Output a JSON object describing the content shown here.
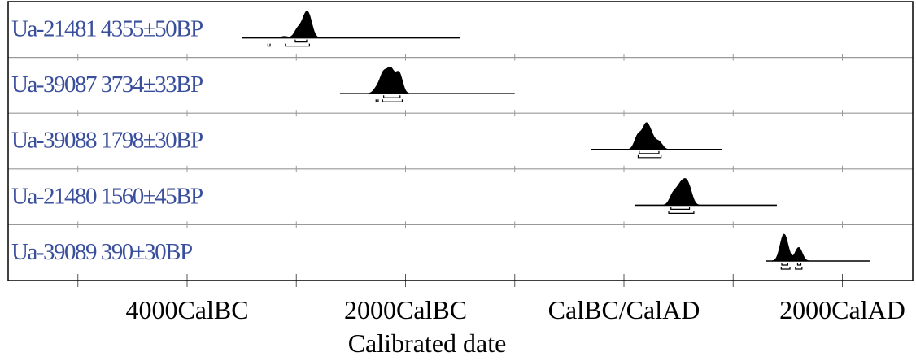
{
  "chart_data": {
    "type": "range",
    "x_axis": {
      "label": "Calibrated date",
      "min": -5000,
      "max": 3000,
      "major_ticks": [
        -4000,
        -2000,
        0,
        2000
      ],
      "minor_step": 1000,
      "tick_labels": [
        "4000CalBC",
        "2000CalBC",
        "CalBC/CalAD",
        "2000CalAD"
      ]
    },
    "grid": true,
    "colors": {
      "label": "#3a4f9c",
      "distribution": "#000000",
      "frame": "#000000",
      "row_line": "#999999"
    },
    "samples": [
      {
        "label": "Ua-21481  4355±50BP",
        "lab_id": "Ua-21481",
        "bp": 4355,
        "error": 50,
        "range_start": -3500,
        "range_end": -1500,
        "peaks": [
          [
            -3110,
            0.09
          ],
          [
            -2985,
            0.55
          ],
          [
            -2920,
            1.0
          ],
          [
            -2880,
            0.95
          ]
        ],
        "sigma1": [
          [
            -3010,
            -2905
          ]
        ],
        "sigma2": [
          [
            -3260,
            -3240
          ],
          [
            -3100,
            -2880
          ]
        ]
      },
      {
        "label": "Ua-39087  3734±33BP",
        "lab_id": "Ua-39087",
        "bp": 3734,
        "error": 33,
        "range_start": -2600,
        "range_end": -1000,
        "peaks": [
          [
            -2260,
            0.25
          ],
          [
            -2200,
            0.85
          ],
          [
            -2135,
            1.0
          ],
          [
            -2060,
            0.9
          ]
        ],
        "sigma1": [
          [
            -2200,
            -2050
          ]
        ],
        "sigma2": [
          [
            -2270,
            -2250
          ],
          [
            -2210,
            -2030
          ]
        ]
      },
      {
        "label": "Ua-39088  1798±30BP",
        "lab_id": "Ua-39088",
        "bp": 1798,
        "error": 30,
        "range_start": -300,
        "range_end": 900,
        "peaks": [
          [
            130,
            0.65
          ],
          [
            200,
            1.0
          ],
          [
            250,
            0.55
          ],
          [
            320,
            0.35
          ]
        ],
        "sigma1": [
          [
            140,
            320
          ]
        ],
        "sigma2": [
          [
            130,
            340
          ]
        ]
      },
      {
        "label": "Ua-21480  1560±45BP",
        "lab_id": "Ua-21480",
        "bp": 1560,
        "error": 45,
        "range_start": 100,
        "range_end": 1400,
        "peaks": [
          [
            450,
            0.65
          ],
          [
            510,
            0.9
          ],
          [
            560,
            1.0
          ],
          [
            600,
            0.7
          ]
        ],
        "sigma1": [
          [
            430,
            600
          ]
        ],
        "sigma2": [
          [
            410,
            640
          ]
        ]
      },
      {
        "label": "Ua-39089  390±30BP",
        "lab_id": "Ua-39089",
        "bp": 390,
        "error": 30,
        "range_start": 1300,
        "range_end": 2250,
        "peaks": [
          [
            1455,
            1.0
          ],
          [
            1485,
            0.65
          ],
          [
            1600,
            0.75
          ]
        ],
        "sigma1": [
          [
            1445,
            1500
          ],
          [
            1590,
            1620
          ]
        ],
        "sigma2": [
          [
            1440,
            1520
          ],
          [
            1570,
            1630
          ]
        ]
      }
    ]
  }
}
